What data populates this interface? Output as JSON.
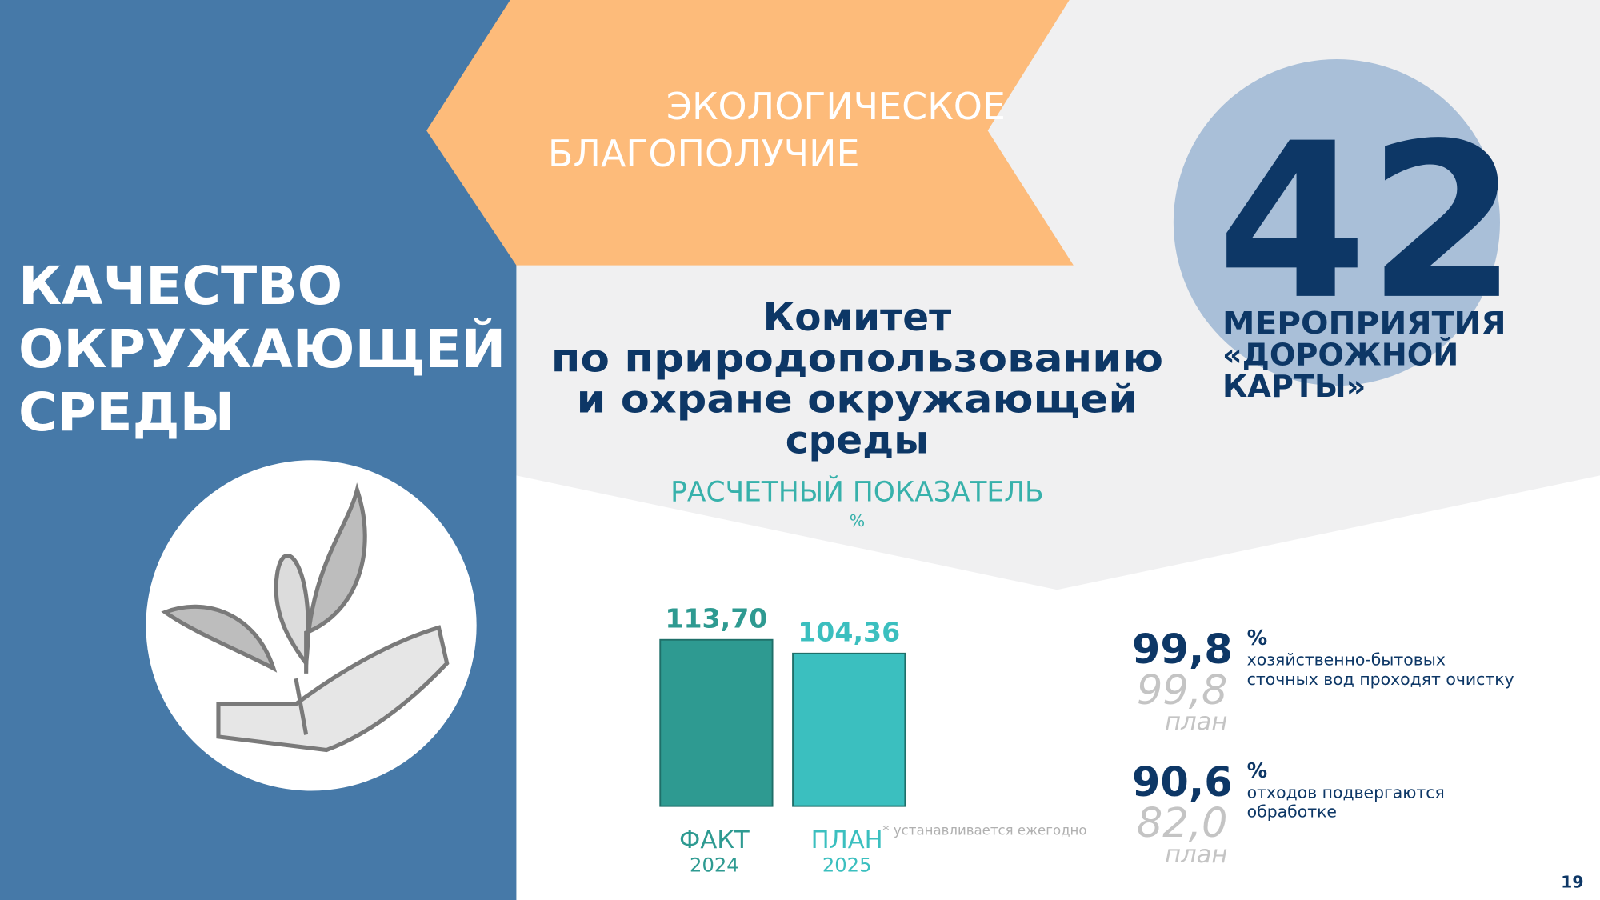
{
  "section": "ЭКОЛОГИЧЕСКОЕ БЛАГОПОЛУЧИЕ",
  "section_lines": [
    "ЭКОЛОГИЧЕСКОЕ",
    "БЛАГОПОЛУЧИЕ"
  ],
  "topic_lines": [
    "КАЧЕСТВО",
    "ОКРУЖАЮЩЕЙ",
    "СРЕДЫ"
  ],
  "committee_lines": [
    "Комитет",
    "по природопользованию",
    "и охране окружающей",
    "среды"
  ],
  "roadmap": {
    "number": "42",
    "lines": [
      "МЕРОПРИЯТИЯ",
      "«ДОРОЖНОЙ",
      "КАРТЫ»"
    ]
  },
  "chart_data": {
    "type": "bar",
    "title": "РАСЧЕТНЫЙ ПОКАЗАТЕЛЬ",
    "subtitle": "%",
    "categories": [
      "ФАКТ",
      "ПЛАН"
    ],
    "category_years": [
      "2024",
      "2025"
    ],
    "values": [
      113.7,
      104.36
    ],
    "value_labels": [
      "113,70",
      "104,36"
    ],
    "colors": [
      "#2e9a91",
      "#3bbfbf"
    ],
    "note": "* устанавливается ежегодно"
  },
  "indicators": [
    {
      "value": "99,8",
      "unit": "%",
      "text_lines": [
        "хозяйственно-бытовых",
        "сточных вод проходят очистку"
      ],
      "plan": "99,8",
      "plan_label": "план"
    },
    {
      "value": "90,6",
      "unit": "%",
      "text_lines": [
        "отходов подвергаются",
        "обработке"
      ],
      "plan": "82,0",
      "plan_label": "план"
    }
  ],
  "page_number": "19"
}
